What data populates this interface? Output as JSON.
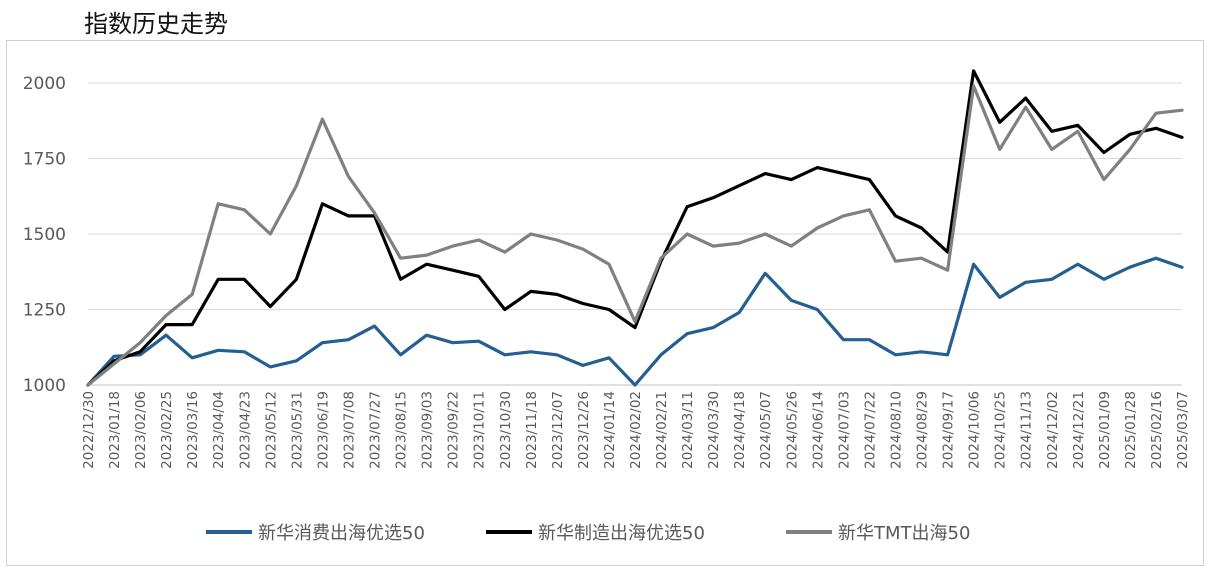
{
  "chart_data": {
    "type": "line",
    "title": "指数历史走势",
    "xlabel": "",
    "ylabel": "",
    "ylim": [
      1000,
      2050
    ],
    "yticks": [
      1000,
      1250,
      1500,
      1750,
      2000
    ],
    "x_tick_labels": [
      "2022/12/30",
      "2023/01/18",
      "2023/02/06",
      "2023/02/25",
      "2023/03/16",
      "2023/04/04",
      "2023/04/23",
      "2023/05/12",
      "2023/05/31",
      "2023/06/19",
      "2023/07/08",
      "2023/07/27",
      "2023/08/15",
      "2023/09/03",
      "2023/09/22",
      "2023/10/11",
      "2023/10/30",
      "2023/11/18",
      "2023/12/07",
      "2023/12/26",
      "2024/01/14",
      "2024/02/02",
      "2024/02/21",
      "2024/03/11",
      "2024/03/30",
      "2024/04/18",
      "2024/05/07",
      "2024/05/26",
      "2024/06/14",
      "2024/07/03",
      "2024/07/22",
      "2024/08/10",
      "2024/08/29",
      "2024/09/17",
      "2024/10/06",
      "2024/10/25",
      "2024/11/13",
      "2024/12/02",
      "2024/12/21",
      "2025/01/09",
      "2025/01/28",
      "2025/02/16",
      "2025/03/07"
    ],
    "legend_position": "bottom",
    "series": [
      {
        "name": "新华消费出海优选50",
        "color": "#255e91",
        "values": [
          1000,
          1095,
          1100,
          1165,
          1090,
          1115,
          1110,
          1060,
          1080,
          1140,
          1150,
          1195,
          1100,
          1165,
          1140,
          1145,
          1100,
          1110,
          1100,
          1065,
          1090,
          1000,
          1100,
          1170,
          1190,
          1240,
          1370,
          1280,
          1250,
          1150,
          1150,
          1100,
          1110,
          1100,
          1400,
          1290,
          1340,
          1350,
          1400,
          1350,
          1390,
          1420,
          1390
        ]
      },
      {
        "name": "新华制造出海优选50",
        "color": "#000000",
        "values": [
          1000,
          1080,
          1110,
          1200,
          1200,
          1350,
          1350,
          1260,
          1350,
          1600,
          1560,
          1560,
          1350,
          1400,
          1380,
          1360,
          1250,
          1310,
          1300,
          1270,
          1250,
          1190,
          1410,
          1590,
          1620,
          1660,
          1700,
          1680,
          1720,
          1700,
          1680,
          1560,
          1520,
          1440,
          2040,
          1870,
          1950,
          1840,
          1860,
          1770,
          1830,
          1850,
          1820
        ]
      },
      {
        "name": "新华TMT出海50",
        "color": "#808080",
        "values": [
          1000,
          1070,
          1140,
          1230,
          1300,
          1600,
          1580,
          1500,
          1660,
          1880,
          1690,
          1570,
          1420,
          1430,
          1460,
          1480,
          1440,
          1500,
          1480,
          1450,
          1400,
          1210,
          1420,
          1500,
          1460,
          1470,
          1500,
          1460,
          1520,
          1560,
          1580,
          1410,
          1420,
          1380,
          1990,
          1780,
          1920,
          1780,
          1840,
          1680,
          1780,
          1900,
          1910
        ]
      }
    ]
  }
}
